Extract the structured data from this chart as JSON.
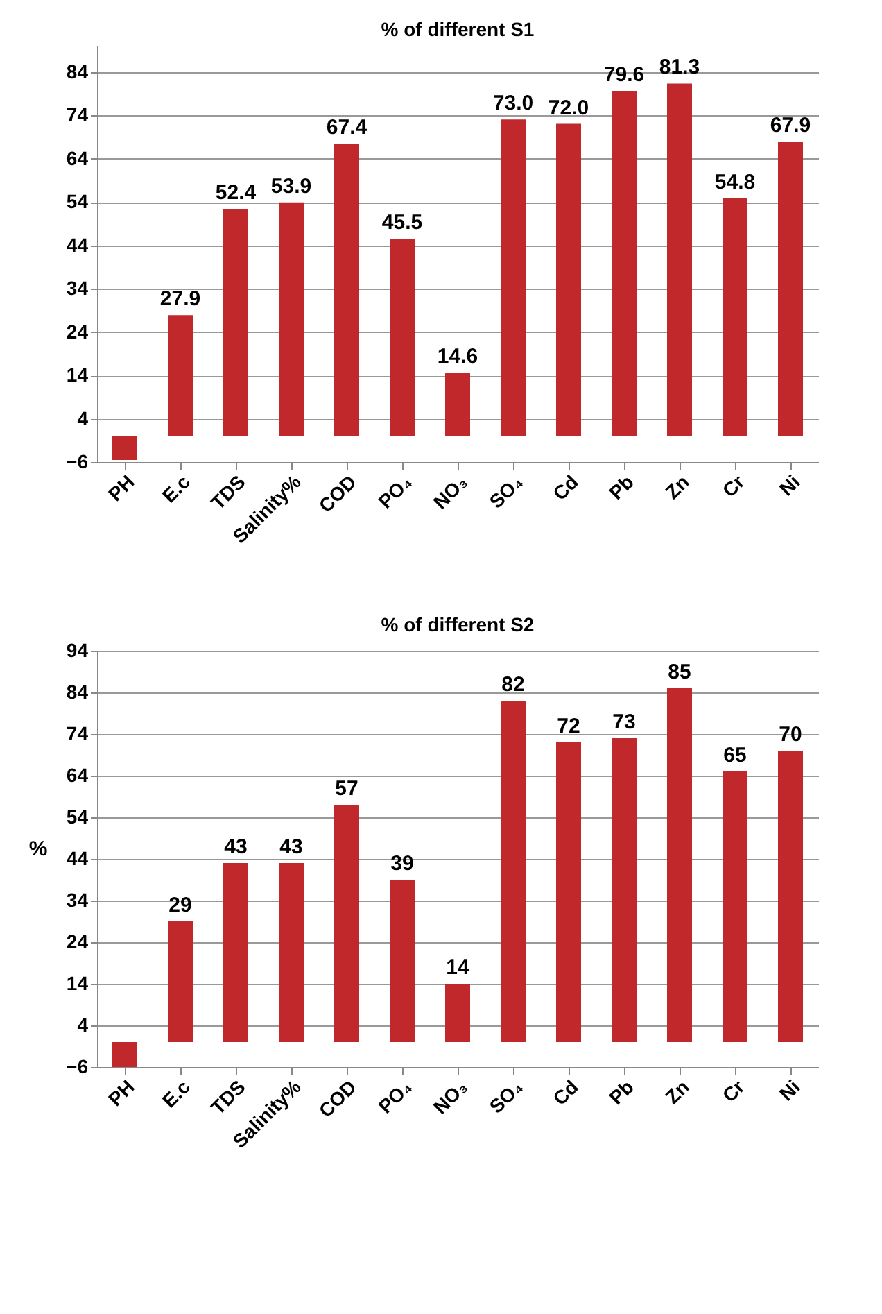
{
  "chart_data": [
    {
      "type": "bar",
      "title": "% of different S1",
      "categories": [
        "PH",
        "E.c",
        "TDS",
        "Salinity%",
        "COD",
        "PO₄",
        "NO₃",
        "SO₄",
        "Cd",
        "Pb",
        "Zn",
        "Cr",
        "Ni"
      ],
      "series": [
        {
          "color": "#c0282b",
          "values": [
            -5.5,
            27.9,
            52.4,
            53.9,
            67.4,
            45.5,
            14.6,
            73.0,
            72.0,
            79.6,
            81.3,
            54.8,
            67.9
          ],
          "value_labels": [
            null,
            "27.9",
            "52.4",
            "53.9",
            "67.4",
            "45.5",
            "14.6",
            "73.0",
            "72.0",
            "79.6",
            "81.3",
            "54.8",
            "67.9"
          ]
        }
      ],
      "ylim": [
        -6,
        90
      ],
      "yticks": [
        -6,
        4,
        14,
        24,
        34,
        44,
        54,
        64,
        74,
        84
      ],
      "grid": "y"
    },
    {
      "type": "bar",
      "title": "% of different S2",
      "ylabel": "%",
      "categories": [
        "PH",
        "E.c",
        "TDS",
        "Salinity%",
        "COD",
        "PO₄",
        "NO₃",
        "SO₄",
        "Cd",
        "Pb",
        "Zn",
        "Cr",
        "Ni"
      ],
      "series": [
        {
          "color": "#c0282b",
          "values": [
            -6,
            29,
            43,
            43,
            57,
            39,
            14,
            82,
            72,
            73,
            85,
            65,
            70
          ],
          "value_labels": [
            null,
            "29",
            "43",
            "43",
            "57",
            "39",
            "14",
            "82",
            "72",
            "73",
            "85",
            "65",
            "70"
          ]
        }
      ],
      "ylim": [
        -6,
        94
      ],
      "yticks": [
        -6,
        4,
        14,
        24,
        34,
        44,
        54,
        64,
        74,
        84,
        94
      ],
      "grid": "y"
    }
  ]
}
